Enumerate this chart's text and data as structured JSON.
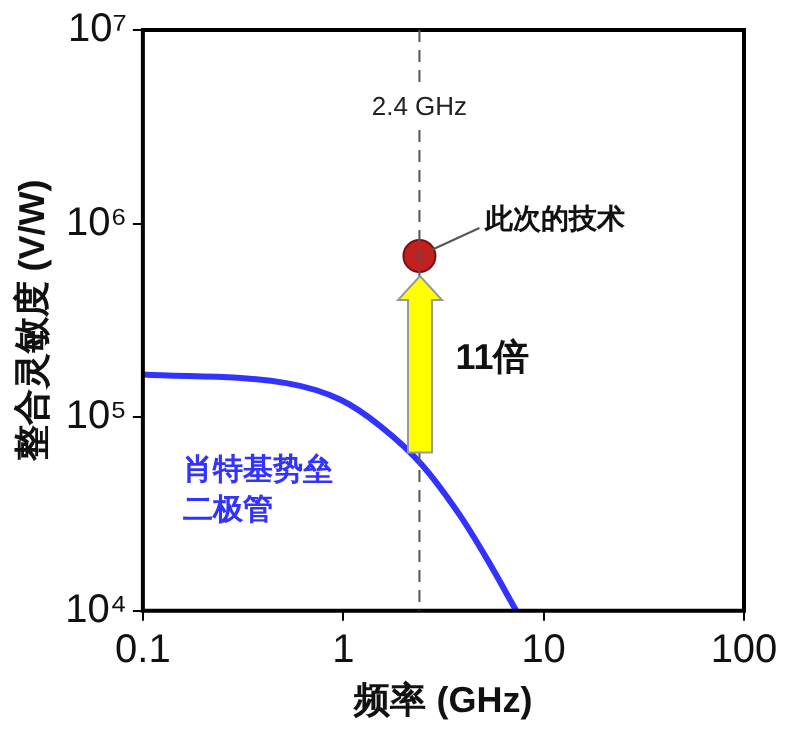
{
  "chart_data": {
    "type": "line",
    "xlabel": "频率 (GHz)",
    "ylabel": "整合灵敏度 (V/W)",
    "log": "xy",
    "xlim": [
      0.1,
      100
    ],
    "xticks": [
      0.1,
      1,
      10,
      100
    ],
    "ylim": [
      10000,
      10000000
    ],
    "yticks": [
      {
        "value": 10000,
        "label": "10⁴"
      },
      {
        "value": 100000,
        "label": "10⁵"
      },
      {
        "value": 1000000,
        "label": "10⁶"
      },
      {
        "value": 10000000,
        "label": "10⁷"
      }
    ],
    "series": [
      {
        "name": "肖特基势垒二极管",
        "color": "#3333ff",
        "x": [
          0.1,
          0.52,
          0.97,
          1.53,
          2.46,
          3.83,
          5.3,
          7.3
        ],
        "values": [
          166000,
          150000,
          123000,
          90000,
          57000,
          31000,
          18000,
          10000
        ]
      },
      {
        "name": "此次的技术",
        "type": "scatter",
        "color": "#c0201f",
        "x": [
          2.4
        ],
        "values": [
          680000
        ]
      }
    ],
    "ref_lines": [
      {
        "axis": "x",
        "value": 2.4,
        "label": "2.4 GHz",
        "line_style": "dashed",
        "color": "#555555"
      }
    ],
    "annotations": [
      {
        "text": "11倍",
        "x": 2.4,
        "y": 200000
      }
    ],
    "grid": false,
    "legend": false,
    "line_style": "solid"
  }
}
